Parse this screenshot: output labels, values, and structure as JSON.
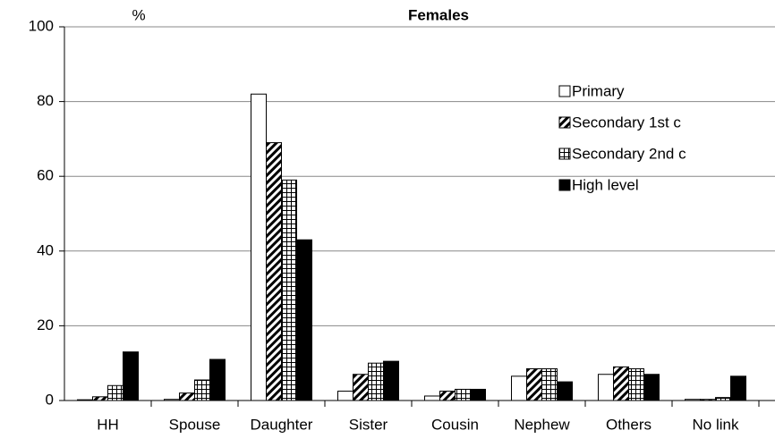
{
  "chart_data": {
    "type": "bar",
    "title": "Females",
    "y_label": "%",
    "categories": [
      "HH",
      "Spouse",
      "Daughter",
      "Sister",
      "Cousin",
      "Nephew",
      "Others",
      "No link"
    ],
    "series": [
      {
        "name": "Primary",
        "color": "#ffffff",
        "pattern": "none",
        "values": [
          0.2,
          0.3,
          82,
          2.5,
          1.2,
          6.5,
          7,
          0.3
        ]
      },
      {
        "name": "Secondary 1st c",
        "color": "#ffffff",
        "pattern": "diagonal",
        "values": [
          1,
          2,
          69,
          7,
          2.5,
          8.5,
          9,
          0.3
        ]
      },
      {
        "name": "Secondary 2nd c",
        "color": "#ffffff",
        "pattern": "grid",
        "values": [
          4,
          5.5,
          59,
          10,
          3,
          8.5,
          8.5,
          0.8
        ]
      },
      {
        "name": "High level",
        "color": "#000000",
        "pattern": "none",
        "values": [
          13,
          11,
          43,
          10.5,
          3,
          5,
          7,
          6.5
        ]
      }
    ],
    "ylim": [
      0,
      100
    ],
    "yticks": [
      0,
      20,
      40,
      60,
      80,
      100
    ],
    "grid": true,
    "legend": "upper right"
  }
}
